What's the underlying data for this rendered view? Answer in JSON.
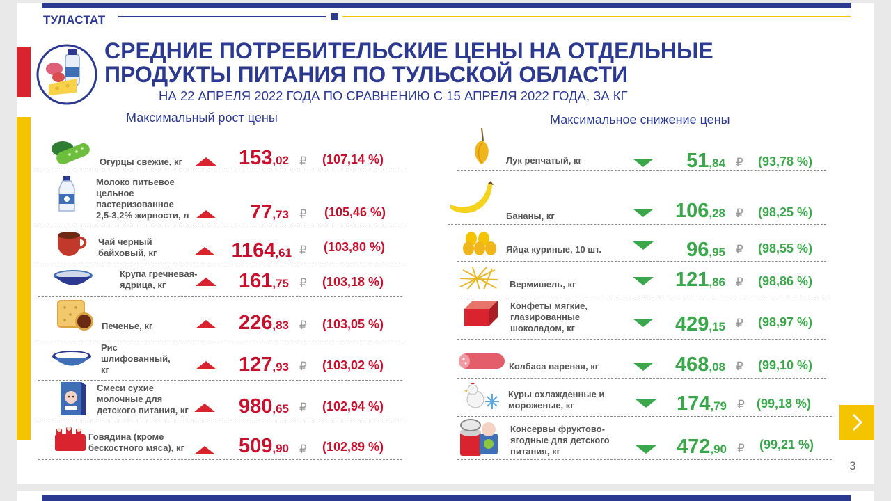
{
  "header": {
    "logo": "ТУЛАСТАТ",
    "title_line1": "СРЕДНИЕ ПОТРЕБИТЕЛЬСКИЕ ЦЕНЫ НА ОТДЕЛЬНЫЕ",
    "title_line2": "ПРОДУКТЫ ПИТАНИЯ ПО ТУЛЬСКОЙ ОБЛАСТИ",
    "subtitle": "НА 22 АПРЕЛЯ 2022 ГОДА ПО СРАВНЕНИЮ С 15 АПРЕЛЯ 2022 ГОДА, ЗА КГ"
  },
  "currency_symbol": "₽",
  "left": {
    "heading": "Максимальный рост цены",
    "items": [
      {
        "label": "Огурцы свежие, кг",
        "price_int": "153",
        "price_dec": ",02",
        "pct": "(107,14 %)",
        "icon": "cucumber-icon"
      },
      {
        "label": "Молоко питьевое цельное пастеризованное 2,5-3,2% жирности, л",
        "price_int": "77",
        "price_dec": ",73",
        "pct": "(105,46 %)",
        "icon": "milk-bottle-icon"
      },
      {
        "label": "Чай черный байховый, кг",
        "price_int": "1164",
        "price_dec": ",61",
        "pct": "(103,80 %)",
        "icon": "tea-cup-icon"
      },
      {
        "label": "Крупа гречневая-ядрица, кг",
        "price_int": "161",
        "price_dec": ",75",
        "pct": "(103,18 %)",
        "icon": "buckwheat-bowl-icon"
      },
      {
        "label": "Печенье, кг",
        "price_int": "226",
        "price_dec": ",83",
        "pct": "(103,05 %)",
        "icon": "cookies-icon"
      },
      {
        "label": "Рис шлифованный, кг",
        "price_int": "127",
        "price_dec": ",93",
        "pct": "(103,02 %)",
        "icon": "rice-bowl-icon"
      },
      {
        "label": "Смеси сухие молочные для детского питания, кг",
        "price_int": "980",
        "price_dec": ",65",
        "pct": "(102,94 %)",
        "icon": "baby-formula-icon"
      },
      {
        "label": "Говядина (кроме бескостного мяса), кг",
        "price_int": "509",
        "price_dec": ",90",
        "pct": "(102,89 %)",
        "icon": "beef-icon"
      }
    ]
  },
  "right": {
    "heading": "Максимальное снижение цены",
    "items": [
      {
        "label": "Лук репчатый, кг",
        "price_int": "51",
        "price_dec": ",84",
        "pct": "(93,78 %)",
        "icon": "onion-icon"
      },
      {
        "label": "Бананы, кг",
        "price_int": "106",
        "price_dec": ",28",
        "pct": "(98,25 %)",
        "icon": "banana-icon"
      },
      {
        "label": "Яйца куриные, 10 шт.",
        "price_int": "96",
        "price_dec": ",95",
        "pct": "(98,55 %)",
        "icon": "eggs-icon"
      },
      {
        "label": "Вермишель, кг",
        "price_int": "121",
        "price_dec": ",86",
        "pct": "(98,86 %)",
        "icon": "vermicelli-icon"
      },
      {
        "label": "Конфеты мягкие, глазированные шоколадом, кг",
        "price_int": "429",
        "price_dec": ",15",
        "pct": "(98,97 %)",
        "icon": "candy-icon"
      },
      {
        "label": "Колбаса вареная, кг",
        "price_int": "468",
        "price_dec": ",08",
        "pct": "(99,10 %)",
        "icon": "sausage-icon"
      },
      {
        "label": "Куры охлажденные и мороженые, кг",
        "price_int": "174",
        "price_dec": ",79",
        "pct": "(99,18 %)",
        "icon": "chicken-icon"
      },
      {
        "label": "Консервы фруктово-ягодные для детского питания, кг",
        "price_int": "472",
        "price_dec": ",90",
        "pct": "(99,21 %)",
        "icon": "baby-puree-can-icon"
      }
    ]
  },
  "footer": {
    "page_number": "3",
    "next_icon": "chevron-right-icon"
  },
  "colors": {
    "brand_blue": "#2b3990",
    "increase_red": "#c8102e",
    "decrease_green": "#3aa84a",
    "accent_yellow": "#f5c400"
  }
}
